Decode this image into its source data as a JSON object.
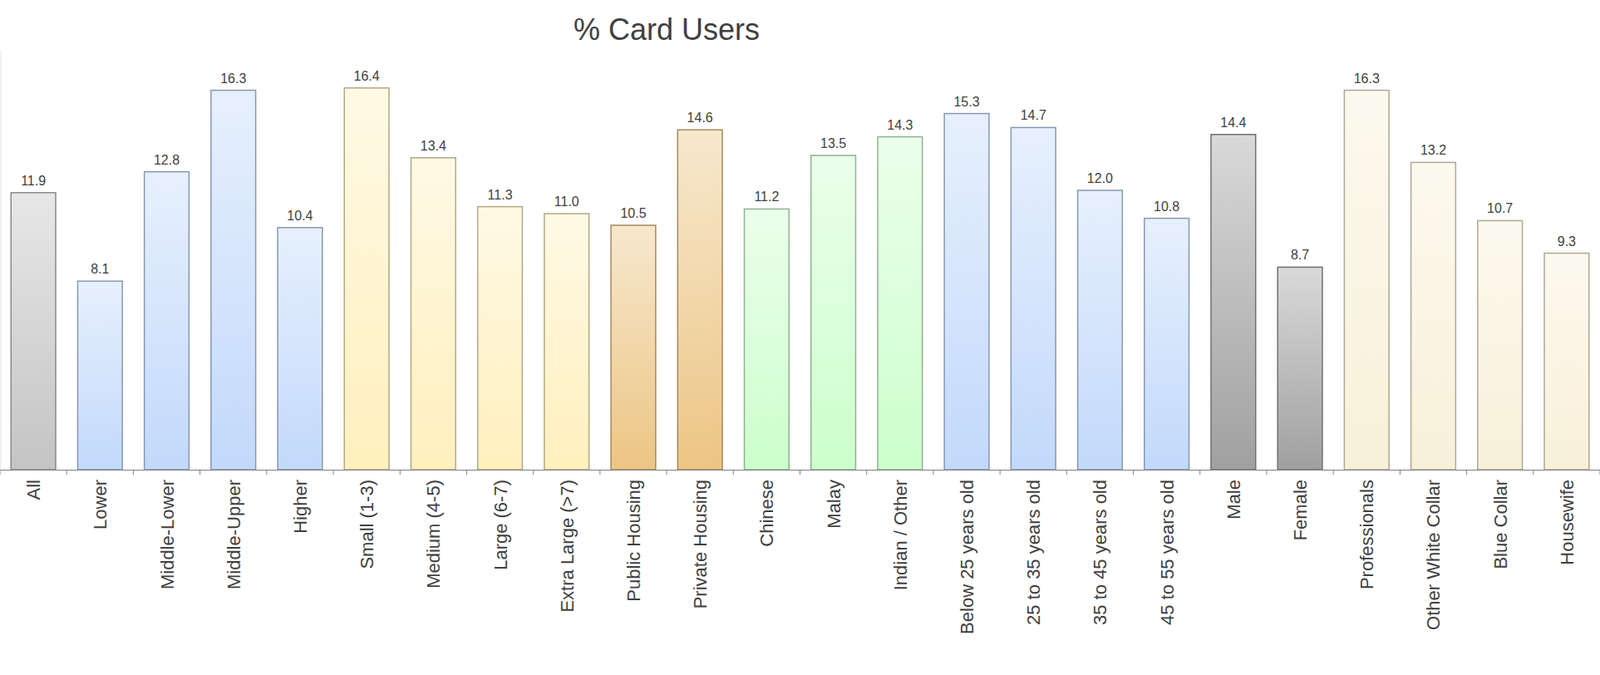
{
  "chart_data": {
    "type": "bar",
    "title": "% Card Users",
    "categories": [
      "All",
      "Lower",
      "Middle-Lower",
      "Middle-Upper",
      "Higher",
      "Small (1-3)",
      "Medium (4-5)",
      "Large (6-7)",
      "Extra Large (>7)",
      "Public Housing",
      "Private Housing",
      "Chinese",
      "Malay",
      "Indian / Other",
      "Below 25 years old",
      "25 to 35 years old",
      "35 to 45 years old",
      "45 to 55 years old",
      "Male",
      "Female",
      "Professionals",
      "Other White Collar",
      "Blue Collar",
      "Housewife"
    ],
    "values": [
      11.9,
      8.1,
      12.8,
      16.3,
      10.4,
      16.4,
      13.4,
      11.3,
      11.0,
      10.5,
      14.6,
      11.2,
      13.5,
      14.3,
      15.3,
      14.7,
      12.0,
      10.8,
      14.4,
      8.7,
      16.3,
      13.2,
      10.7,
      9.3
    ],
    "value_labels": [
      "11.9",
      "8.1",
      "12.8",
      "16.3",
      "10.4",
      "16.4",
      "13.4",
      "11.3",
      "11.0",
      "10.5",
      "14.6",
      "11.2",
      "13.5",
      "14.3",
      "15.3",
      "14.7",
      "12.0",
      "10.8",
      "14.4",
      "8.7",
      "16.3",
      "13.2",
      "10.7",
      "9.3"
    ],
    "colors": [
      "#c4c4c4",
      "#c2d9fb",
      "#c2d9fb",
      "#c2d9fb",
      "#c2d9fb",
      "#fff0bd",
      "#fff0bd",
      "#fff0bd",
      "#fff0bd",
      "#ecc584",
      "#ecc584",
      "#ccffcc",
      "#ccffcc",
      "#ccffcc",
      "#c2d9fb",
      "#c2d9fb",
      "#c2d9fb",
      "#c2d9fb",
      "#a0a0a0",
      "#a0a0a0",
      "#f8f0d8",
      "#f8f0d8",
      "#f8f0d8",
      "#f8f0d8"
    ],
    "ylim": [
      0,
      18
    ],
    "data_labels": true,
    "tick_labels": "x",
    "grid": false
  }
}
